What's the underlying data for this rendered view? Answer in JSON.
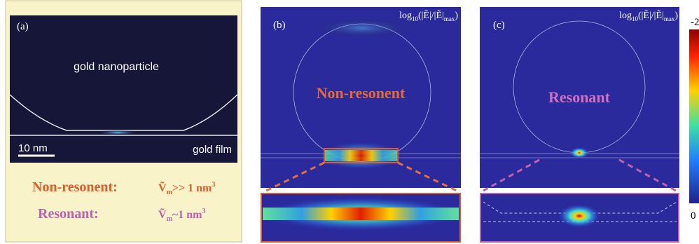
{
  "panel_a": {
    "label": "(a)",
    "particle": "gold nanoparticle",
    "scale_bar": "10 nm",
    "film": "gold film"
  },
  "legend": [
    {
      "name": "Non-resonent:",
      "symbol": "Ṽ",
      "sub": "m",
      "relation": ">> 1 nm",
      "sup": "3"
    },
    {
      "name": "Resonant:",
      "symbol": "Ṽ",
      "sub": "m",
      "relation": "~1 nm",
      "sup": "3"
    }
  ],
  "field_label": {
    "prefix": "log",
    "sub": "10",
    "body": "(|Ẽ|/|Ẽ|",
    "sub2": "max",
    "suffix": ")"
  },
  "panel_b": {
    "label": "(b)",
    "title": "Non-resonent"
  },
  "panel_c": {
    "label": "(c)",
    "title": "Resonant"
  },
  "colorbar": {
    "top": "-2",
    "bottom": "0"
  }
}
